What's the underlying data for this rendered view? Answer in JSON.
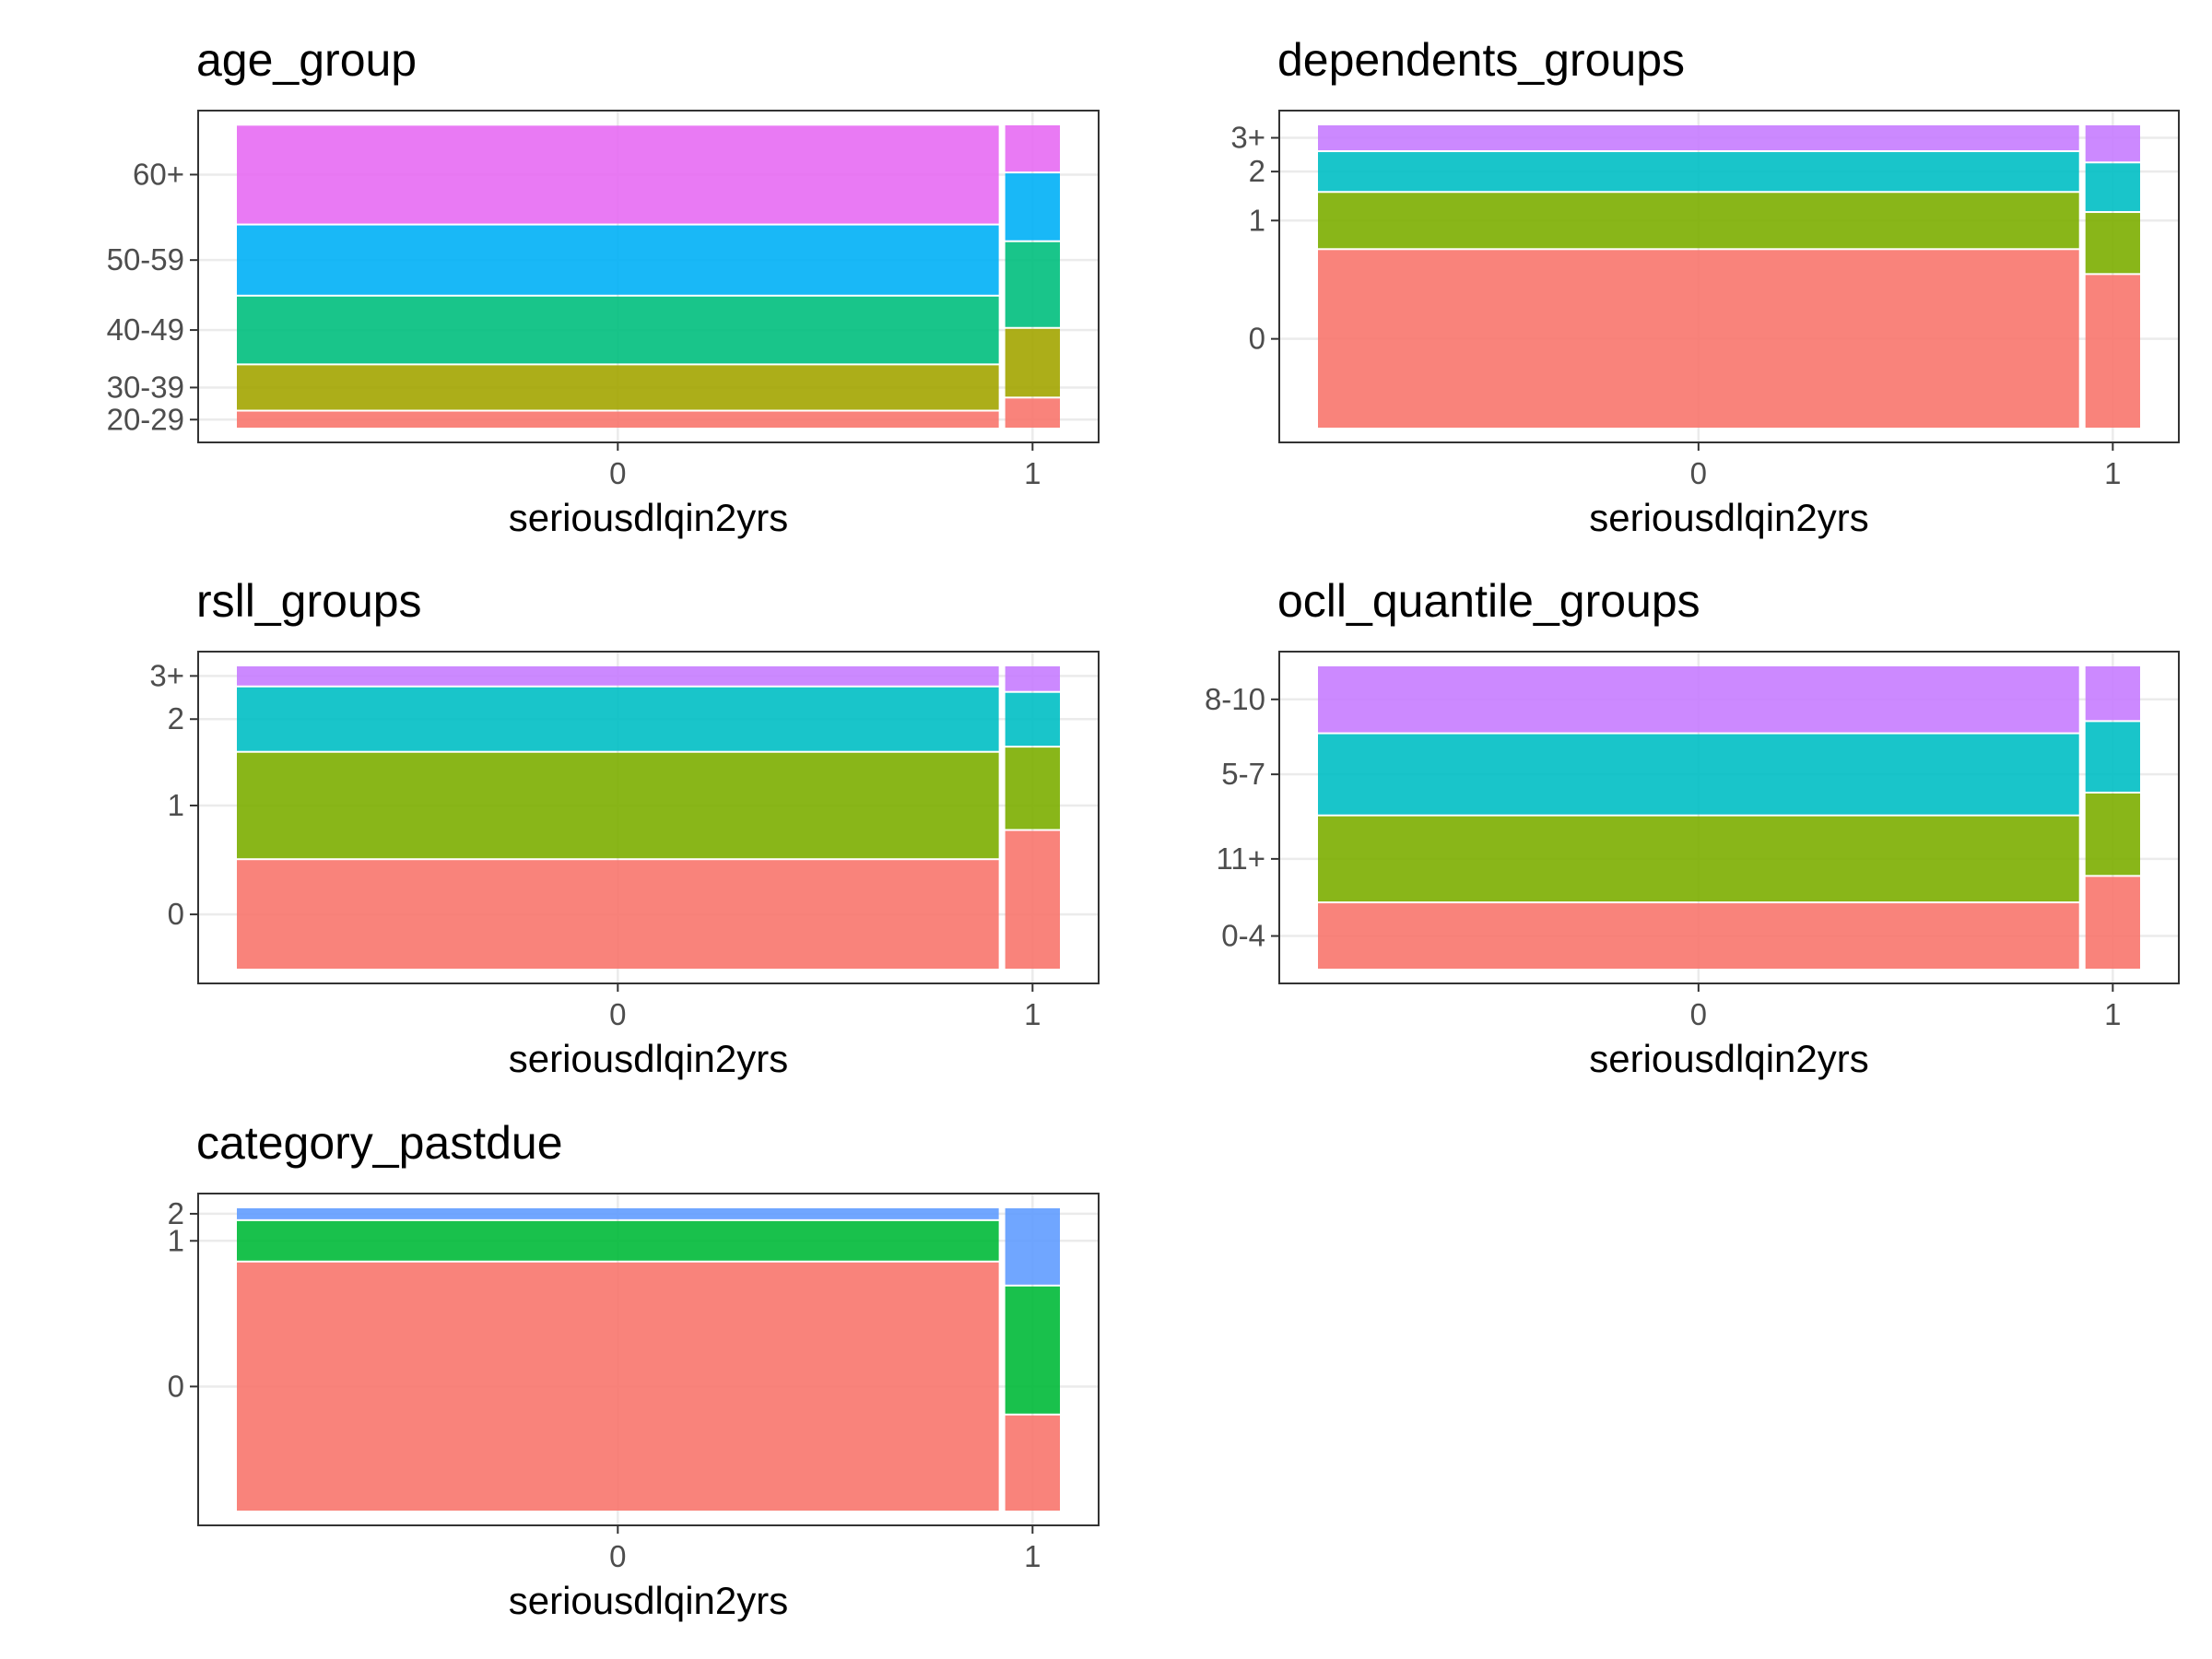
{
  "x_categories": [
    "0",
    "1"
  ],
  "x_shares": [
    0.933,
    0.067
  ],
  "chart_data": [
    {
      "type": "mosaic",
      "title": "age_group",
      "xlabel": "seriousdlqin2yrs",
      "categories": [
        "20-29",
        "30-39",
        "40-49",
        "50-59",
        "60+"
      ],
      "colors": [
        "#F8766D",
        "#A3A500",
        "#00BF7D",
        "#00B0F6",
        "#E76BF3"
      ],
      "series": [
        {
          "name": "0",
          "values": [
            0.059,
            0.152,
            0.226,
            0.234,
            0.328
          ]
        },
        {
          "name": "1",
          "values": [
            0.102,
            0.229,
            0.285,
            0.226,
            0.158
          ]
        }
      ]
    },
    {
      "type": "mosaic",
      "title": "dependents_groups",
      "xlabel": "seriousdlqin2yrs",
      "categories": [
        "0",
        "1",
        "2",
        "3+"
      ],
      "colors": [
        "#F8766D",
        "#7CAE00",
        "#00BFC4",
        "#C77CFF"
      ],
      "series": [
        {
          "name": "0",
          "values": [
            0.59,
            0.188,
            0.134,
            0.088
          ]
        },
        {
          "name": "1",
          "values": [
            0.508,
            0.204,
            0.163,
            0.125
          ]
        }
      ]
    },
    {
      "type": "mosaic",
      "title": "rsll_groups",
      "xlabel": "seriousdlqin2yrs",
      "categories": [
        "0",
        "1",
        "2",
        "3+"
      ],
      "colors": [
        "#F8766D",
        "#7CAE00",
        "#00BFC4",
        "#C77CFF"
      ],
      "series": [
        {
          "name": "0",
          "values": [
            0.363,
            0.353,
            0.215,
            0.069
          ]
        },
        {
          "name": "1",
          "values": [
            0.459,
            0.274,
            0.18,
            0.087
          ]
        }
      ]
    },
    {
      "type": "mosaic",
      "title": "ocll_quantile_groups",
      "xlabel": "seriousdlqin2yrs",
      "categories": [
        "0-4",
        "11+",
        "5-7",
        "8-10"
      ],
      "colors": [
        "#F8766D",
        "#7CAE00",
        "#00BFC4",
        "#C77CFF"
      ],
      "series": [
        {
          "name": "0",
          "values": [
            0.221,
            0.286,
            0.27,
            0.223
          ]
        },
        {
          "name": "1",
          "values": [
            0.308,
            0.274,
            0.235,
            0.183
          ]
        }
      ]
    },
    {
      "type": "mosaic",
      "title": "category_pastdue",
      "xlabel": "seriousdlqin2yrs",
      "categories": [
        "0",
        "1",
        "2"
      ],
      "colors": [
        "#F8766D",
        "#00BA38",
        "#619CFF"
      ],
      "series": [
        {
          "name": "0",
          "values": [
            0.822,
            0.136,
            0.042
          ]
        },
        {
          "name": "1",
          "values": [
            0.319,
            0.424,
            0.257
          ]
        }
      ]
    }
  ]
}
